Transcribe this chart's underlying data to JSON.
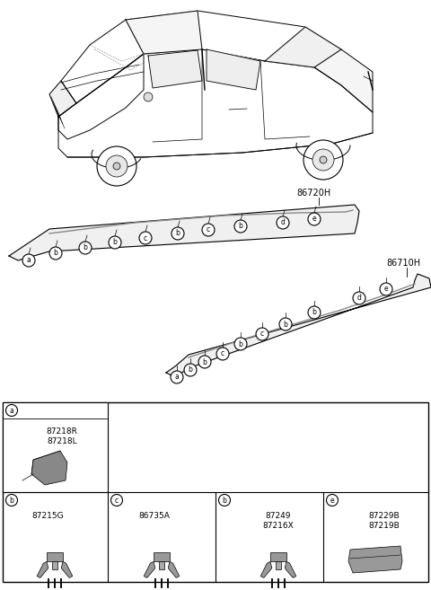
{
  "bg_color": "#ffffff",
  "fig_width": 4.8,
  "fig_height": 6.57,
  "dpi": 100,
  "label_86720H": "86720H",
  "label_86710H": "86710H",
  "strip1_callouts": [
    "a",
    "b",
    "b",
    "b",
    "c",
    "b",
    "c",
    "b",
    "d",
    "e"
  ],
  "strip2_callouts": [
    "a",
    "b",
    "b",
    "c",
    "b",
    "c",
    "b",
    "b",
    "d",
    "e"
  ],
  "parts_top": [
    {
      "label": "a",
      "lines": [
        "87218R",
        "87218L"
      ]
    }
  ],
  "parts_bottom": [
    {
      "label": "b",
      "line": "87215G"
    },
    {
      "label": "c",
      "line": "86735A"
    },
    {
      "label": "b",
      "lines": [
        "87249",
        "87216X"
      ]
    },
    {
      "label": "e",
      "lines": [
        "87229B",
        "87219B"
      ]
    }
  ]
}
